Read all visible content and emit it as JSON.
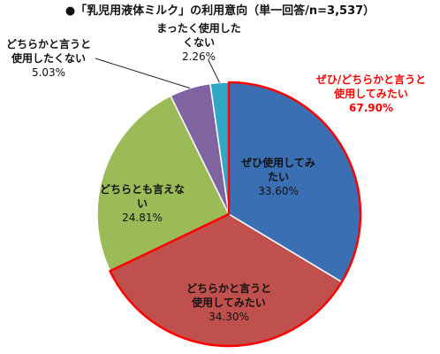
{
  "chart_data": {
    "type": "pie",
    "title": "●「乳児用液体ミルク」の利用意向（単一回答/n=3,537）",
    "slices": [
      {
        "label_lines": [
          "ぜひ使用してみ",
          "たい"
        ],
        "value": 33.6,
        "value_text": "33.60%",
        "color": "#3b6fb3"
      },
      {
        "label_lines": [
          "どちらかと言うと",
          "使用してみたい"
        ],
        "value": 34.3,
        "value_text": "34.30%",
        "color": "#c0504d"
      },
      {
        "label_lines": [
          "どちらとも言えな",
          "い"
        ],
        "value": 24.81,
        "value_text": "24.81%",
        "color": "#9bbb59"
      },
      {
        "label_lines": [
          "どちらかと言うと",
          "使用したくない"
        ],
        "value": 5.03,
        "value_text": "5.03%",
        "color": "#8064a2"
      },
      {
        "label_lines": [
          "まったく使用した",
          "くない"
        ],
        "value": 2.26,
        "value_text": "2.26%",
        "color": "#31a9c5"
      }
    ],
    "annotation": {
      "label_lines": [
        "ぜひ/どちらかと言うと",
        "使用してみたい"
      ],
      "value_text": "67.90%",
      "color": "#ff0000"
    },
    "start_angle_deg": -90,
    "direction": "clockwise"
  }
}
